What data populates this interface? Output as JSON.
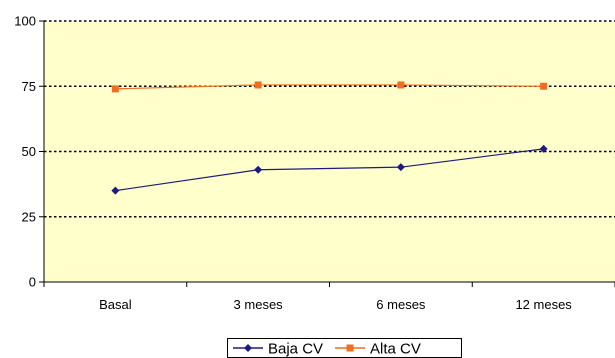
{
  "chart_data": {
    "type": "line",
    "categories": [
      "Basal",
      "3 meses",
      "6 meses",
      "12 meses"
    ],
    "series": [
      {
        "name": "Baja CV",
        "values": [
          35,
          43,
          44,
          51
        ],
        "color": "#1b1b80",
        "marker": "diamond"
      },
      {
        "name": "Alta CV",
        "values": [
          74,
          75.5,
          75.5,
          75
        ],
        "color": "#f26d21",
        "marker": "square"
      }
    ],
    "yticks": [
      0,
      25,
      50,
      75,
      100
    ],
    "ylim": [
      0,
      100
    ],
    "grid": true,
    "legend_position": "bottom",
    "plot_background": "#ffffcc",
    "title": "",
    "xlabel": "",
    "ylabel": ""
  }
}
